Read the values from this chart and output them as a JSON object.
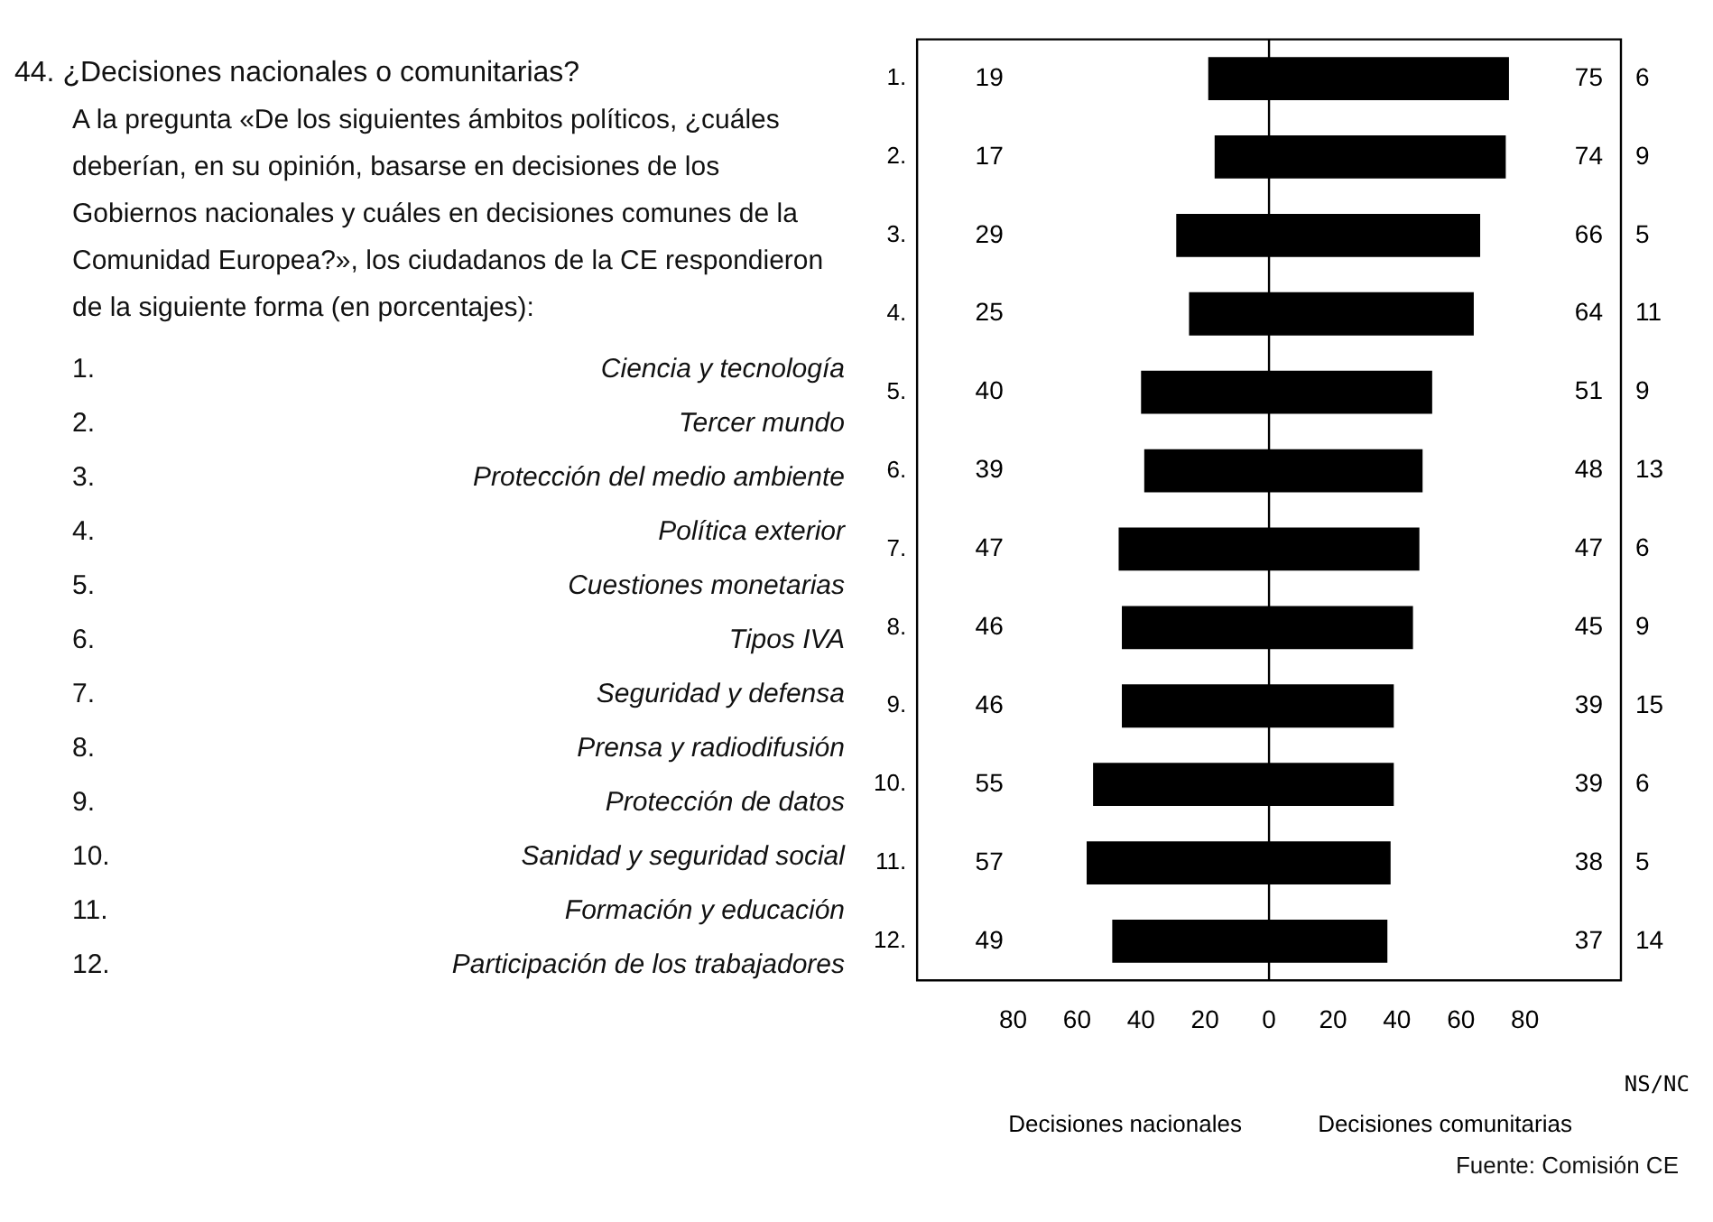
{
  "chart_data": {
    "type": "bar",
    "orientation": "horizontal",
    "title": "44. ¿Decisiones nacionales o comunitarias?",
    "subtitle": "A la pregunta «De los siguientes ámbitos políticos, ¿cuáles deberían, en su opinión, basarse en decisiones de los Gobiernos nacionales y cuáles en decisiones comunes de la Comunidad Europea?», los ciudadanos de la CE respondieron de la siguiente forma (en porcentajes):",
    "categories": [
      "1.",
      "2.",
      "3.",
      "4.",
      "5.",
      "6.",
      "7.",
      "8.",
      "9.",
      "10.",
      "11.",
      "12."
    ],
    "series": [
      {
        "color": "#000000",
        "base": [
          -19,
          -17,
          -29,
          -25,
          -40,
          -39,
          -47,
          -46,
          -46,
          -55,
          -57,
          -49
        ],
        "values": [
          19,
          17,
          29,
          25,
          40,
          39,
          47,
          46,
          46,
          55,
          57,
          49
        ]
      },
      {
        "color": "#000000",
        "values": [
          75,
          74,
          66,
          64,
          51,
          48,
          47,
          45,
          39,
          39,
          38,
          37
        ]
      }
    ],
    "data_labels": true,
    "xlim": [
      -110,
      110
    ],
    "xticks": [
      {
        "value": -80,
        "label": "80"
      },
      {
        "value": -60,
        "label": "60"
      },
      {
        "value": -40,
        "label": "40"
      },
      {
        "value": -20,
        "label": "20"
      },
      0,
      20,
      40,
      60,
      80
    ],
    "ref_lines": [
      {
        "axis": "x",
        "value": 0
      }
    ],
    "annotations": [
      "Ciencia y tecnología",
      "Tercer mundo",
      "Protección del medio ambiente",
      "Política exterior",
      "Cuestiones monetarias",
      "Tipos IVA",
      "Seguridad y defensa",
      "Prensa y radiodifusión",
      "Protección de datos",
      "Sanidad y seguridad social",
      "Formación y educación",
      "Participación de los trabajadores",
      "NS/NC",
      "6",
      "9",
      "5",
      "11",
      "9",
      "13",
      "6",
      "9",
      "15",
      "6",
      "5",
      "14",
      "Decisiones nacionales",
      "Decisiones comunitarias",
      "Fuente: Comisión CE"
    ]
  }
}
